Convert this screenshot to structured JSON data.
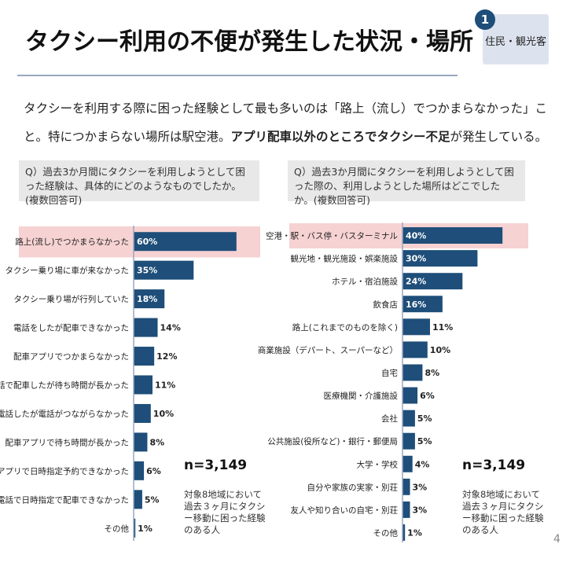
{
  "header": {
    "title": "タクシー利用の不便が発生した状況・場所",
    "badge_number": "1",
    "badge_label": "住民・観光客"
  },
  "lead": {
    "part1": "タクシーを利用する際に困った経験として最も多いのは「路上（流し）でつかまらなかった」こと。特につかまらない場所は駅空港。",
    "part2_bold": "アプリ配車以外のところでタクシー不足",
    "part3": "が発生している。"
  },
  "colors": {
    "bar": "#1e4e79",
    "highlight": "#f6d2d2",
    "axis": "#9aa7bf"
  },
  "chart_data": [
    {
      "type": "bar",
      "orientation": "horizontal",
      "question": "Q）過去3か月間にタクシーを利用しようとして困った経験は、具体的にどのようなものでしたか。(複数回答可)",
      "categories": [
        "路上(流し)でつかまらなかった",
        "タクシー乗り場に車が来なかった",
        "タクシー乗り場が行列していた",
        "電話をしたが配車できなかった",
        "配車アプリでつかまらなかった",
        "電話で配車したが待ち時間が長かった",
        "電話したが電話がつながらなかった",
        "配車アプリで待ち時間が長かった",
        "配車アプリで日時指定予約できなかった",
        "電話で日時指定で配車できなかった",
        "その他"
      ],
      "values": [
        60,
        35,
        18,
        14,
        12,
        11,
        10,
        8,
        6,
        5,
        1
      ],
      "value_labels": [
        "60%",
        "35%",
        "18%",
        "14%",
        "12%",
        "11%",
        "10%",
        "8%",
        "6%",
        "5%",
        "1%"
      ],
      "highlight_index": 0,
      "n": "n=3,149",
      "note": "対象8地域において過去３ヶ月にタクシー移動に困った経験のある人"
    },
    {
      "type": "bar",
      "orientation": "horizontal",
      "question": "Q）過去3か月間にタクシーを利用しようとして困った際の、利用しようとした場所はどこでしたか。(複数回答可)",
      "categories": [
        "空港・駅・バス停・バスターミナル",
        "観光地・観光施設・娯楽施設",
        "ホテル・宿泊施設",
        "飲食店",
        "路上(これまでのものを除く)",
        "商業施設（デパート、スーパーなど）",
        "自宅",
        "医療機関・介護施設",
        "会社",
        "公共施設(役所など)・銀行・郵便局",
        "大学・学校",
        "自分や家族の実家・別荘",
        "友人や知り合いの自宅・別荘",
        "その他"
      ],
      "values": [
        40,
        30,
        24,
        16,
        11,
        10,
        8,
        6,
        5,
        5,
        4,
        3,
        3,
        1
      ],
      "value_labels": [
        "40%",
        "30%",
        "24%",
        "16%",
        "11%",
        "10%",
        "8%",
        "6%",
        "5%",
        "5%",
        "4%",
        "3%",
        "3%",
        "1%"
      ],
      "highlight_index": 0,
      "n": "n=3,149",
      "note": "対象8地域において過去３ヶ月にタクシー移動に困った経験のある人"
    }
  ],
  "page_number": "4"
}
